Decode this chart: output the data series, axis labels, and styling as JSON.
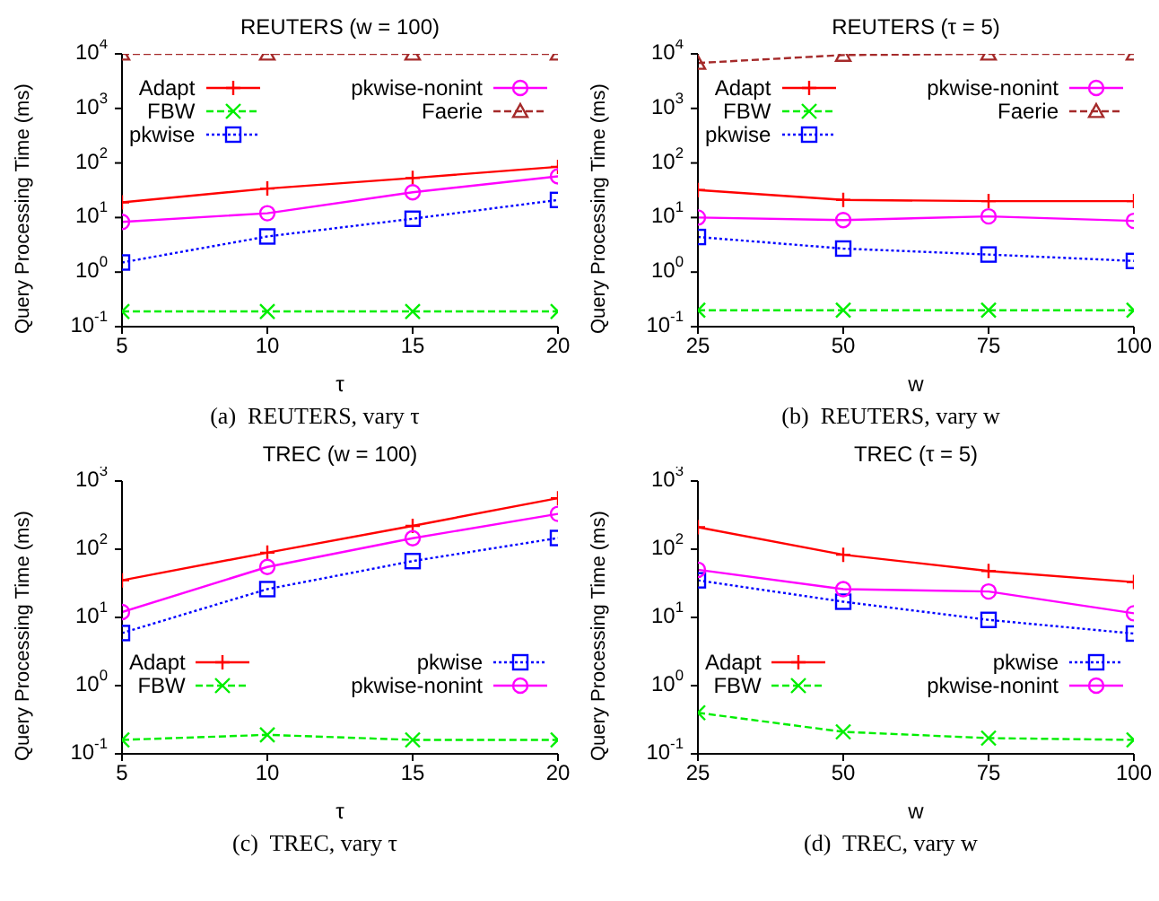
{
  "chart_data": [
    {
      "type": "line",
      "title": "REUTERS (w = 100)",
      "xlabel": "τ",
      "ylabel": "Query Processing Time (ms)",
      "annotations": [
        "(a)  REUTERS, vary τ"
      ],
      "x": [
        5,
        10,
        15,
        20
      ],
      "xlim": [
        5,
        20
      ],
      "xticks": [
        5,
        10,
        15,
        20
      ],
      "log": "y",
      "ylim": [
        0.1,
        10000
      ],
      "yticks": [
        {
          "value": 0.1,
          "label": "10$^{-1}$"
        },
        {
          "value": 1,
          "label": "10$^{0}$"
        },
        {
          "value": 10,
          "label": "10$^{1}$"
        },
        {
          "value": 100,
          "label": "10$^{2}$"
        },
        {
          "value": 1000,
          "label": "10$^{3}$"
        },
        {
          "value": 10000,
          "label": "10$^{4}$"
        }
      ],
      "grid": false,
      "legend": "top",
      "series": [
        {
          "name": "Adapt",
          "color": "#ff0000",
          "marker": "cross",
          "line_style": "solid",
          "values": [
            19,
            34,
            53,
            85
          ]
        },
        {
          "name": "FBW",
          "color": "#00ee00",
          "marker": "x",
          "line_style": "dashed",
          "values": [
            0.19,
            0.19,
            0.19,
            0.19
          ]
        },
        {
          "name": "pkwise",
          "color": "#0000ff",
          "marker": "square",
          "line_style": "dotted",
          "values": [
            1.5,
            4.5,
            9.5,
            21
          ]
        },
        {
          "name": "pkwise-nonint",
          "color": "#ff00ff",
          "marker": "circle",
          "line_style": "solid",
          "values": [
            8.3,
            12,
            29,
            57
          ]
        },
        {
          "name": "Faerie",
          "color": "#a52a2a",
          "marker": "triangle",
          "line_style": "dashed",
          "values": [
            10000,
            10000,
            10000,
            10000
          ]
        }
      ]
    },
    {
      "type": "line",
      "title": "REUTERS (τ = 5)",
      "xlabel": "w",
      "ylabel": "Query Processing Time (ms)",
      "annotations": [
        "(b)  REUTERS, vary w"
      ],
      "x": [
        25,
        50,
        75,
        100
      ],
      "xlim": [
        25,
        100
      ],
      "xticks": [
        25,
        50,
        75,
        100
      ],
      "log": "y",
      "ylim": [
        0.1,
        10000
      ],
      "yticks": [
        {
          "value": 0.1,
          "label": "10$^{-1}$"
        },
        {
          "value": 1,
          "label": "10$^{0}$"
        },
        {
          "value": 10,
          "label": "10$^{1}$"
        },
        {
          "value": 100,
          "label": "10$^{2}$"
        },
        {
          "value": 1000,
          "label": "10$^{3}$"
        },
        {
          "value": 10000,
          "label": "10$^{4}$"
        }
      ],
      "grid": false,
      "legend": "top",
      "series": [
        {
          "name": "Adapt",
          "color": "#ff0000",
          "marker": "cross",
          "line_style": "solid",
          "values": [
            32,
            21,
            20,
            20
          ]
        },
        {
          "name": "FBW",
          "color": "#00ee00",
          "marker": "x",
          "line_style": "dashed",
          "values": [
            0.2,
            0.2,
            0.2,
            0.2
          ]
        },
        {
          "name": "pkwise",
          "color": "#0000ff",
          "marker": "square",
          "line_style": "dotted",
          "values": [
            4.4,
            2.7,
            2.1,
            1.6
          ]
        },
        {
          "name": "pkwise-nonint",
          "color": "#ff00ff",
          "marker": "circle",
          "line_style": "solid",
          "values": [
            10,
            9,
            10.5,
            8.7
          ]
        },
        {
          "name": "Faerie",
          "color": "#a52a2a",
          "marker": "triangle",
          "line_style": "dashed",
          "values": [
            6800,
            9500,
            10000,
            10000
          ]
        }
      ]
    },
    {
      "type": "line",
      "title": "TREC (w = 100)",
      "xlabel": "τ",
      "ylabel": "Query Processing Time (ms)",
      "annotations": [
        "(c)  TREC, vary τ"
      ],
      "x": [
        5,
        10,
        15,
        20
      ],
      "xlim": [
        5,
        20
      ],
      "xticks": [
        5,
        10,
        15,
        20
      ],
      "log": "y",
      "ylim": [
        0.1,
        1000
      ],
      "yticks": [
        {
          "value": 0.1,
          "label": "10$^{-1}$"
        },
        {
          "value": 1,
          "label": "10$^{0}$"
        },
        {
          "value": 10,
          "label": "10$^{1}$"
        },
        {
          "value": 100,
          "label": "10$^{2}$"
        },
        {
          "value": 1000,
          "label": "10$^{3}$"
        }
      ],
      "grid": false,
      "legend": "bottom",
      "series": [
        {
          "name": "Adapt",
          "color": "#ff0000",
          "marker": "cross",
          "line_style": "solid",
          "values": [
            35,
            89,
            220,
            560
          ]
        },
        {
          "name": "FBW",
          "color": "#00ee00",
          "marker": "x",
          "line_style": "dashed",
          "values": [
            0.16,
            0.19,
            0.16,
            0.16
          ]
        },
        {
          "name": "pkwise",
          "color": "#0000ff",
          "marker": "square",
          "line_style": "dotted",
          "values": [
            5.9,
            26,
            67,
            146
          ]
        },
        {
          "name": "pkwise-nonint",
          "color": "#ff00ff",
          "marker": "circle",
          "line_style": "solid",
          "values": [
            12,
            55,
            145,
            330
          ]
        }
      ]
    },
    {
      "type": "line",
      "title": "TREC (τ = 5)",
      "xlabel": "w",
      "ylabel": "Query Processing Time (ms)",
      "annotations": [
        "(d)  TREC, vary w"
      ],
      "x": [
        25,
        50,
        75,
        100
      ],
      "xlim": [
        25,
        100
      ],
      "xticks": [
        25,
        50,
        75,
        100
      ],
      "log": "y",
      "ylim": [
        0.1,
        1000
      ],
      "yticks": [
        {
          "value": 0.1,
          "label": "10$^{-1}$"
        },
        {
          "value": 1,
          "label": "10$^{0}$"
        },
        {
          "value": 10,
          "label": "10$^{1}$"
        },
        {
          "value": 100,
          "label": "10$^{2}$"
        },
        {
          "value": 1000,
          "label": "10$^{3}$"
        }
      ],
      "grid": false,
      "legend": "bottom",
      "series": [
        {
          "name": "Adapt",
          "color": "#ff0000",
          "marker": "cross",
          "line_style": "solid",
          "values": [
            210,
            83,
            48,
            33
          ]
        },
        {
          "name": "FBW",
          "color": "#00ee00",
          "marker": "x",
          "line_style": "dashed",
          "values": [
            0.4,
            0.21,
            0.17,
            0.16
          ]
        },
        {
          "name": "pkwise",
          "color": "#0000ff",
          "marker": "square",
          "line_style": "dotted",
          "values": [
            35,
            17,
            9.2,
            5.8
          ]
        },
        {
          "name": "pkwise-nonint",
          "color": "#ff00ff",
          "marker": "circle",
          "line_style": "solid",
          "values": [
            50,
            26,
            24,
            11.5
          ]
        }
      ]
    }
  ]
}
